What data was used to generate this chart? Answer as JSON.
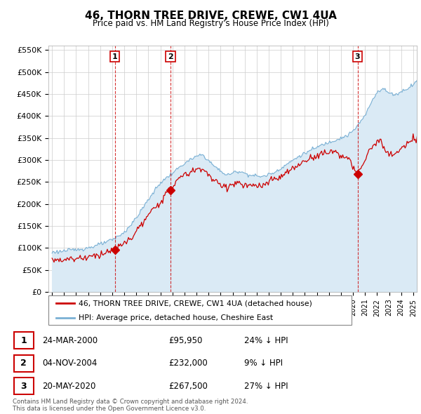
{
  "title": "46, THORN TREE DRIVE, CREWE, CW1 4UA",
  "subtitle": "Price paid vs. HM Land Registry's House Price Index (HPI)",
  "ylim": [
    0,
    560000
  ],
  "yticks": [
    0,
    50000,
    100000,
    150000,
    200000,
    250000,
    300000,
    350000,
    400000,
    450000,
    500000,
    550000
  ],
  "xlim_start": 1994.7,
  "xlim_end": 2025.3,
  "sale_color": "#cc0000",
  "hpi_color": "#7ab0d4",
  "hpi_fill_color": "#daeaf5",
  "legend_sale_label": "46, THORN TREE DRIVE, CREWE, CW1 4UA (detached house)",
  "legend_hpi_label": "HPI: Average price, detached house, Cheshire East",
  "sales": [
    {
      "date_num": 2000.22,
      "price": 95950,
      "label": "1"
    },
    {
      "date_num": 2004.84,
      "price": 232000,
      "label": "2"
    },
    {
      "date_num": 2020.38,
      "price": 267500,
      "label": "3"
    }
  ],
  "table_rows": [
    {
      "num": "1",
      "date": "24-MAR-2000",
      "price": "£95,950",
      "hpi_diff": "24% ↓ HPI"
    },
    {
      "num": "2",
      "date": "04-NOV-2004",
      "price": "£232,000",
      "hpi_diff": "9% ↓ HPI"
    },
    {
      "num": "3",
      "date": "20-MAY-2020",
      "price": "£267,500",
      "hpi_diff": "27% ↓ HPI"
    }
  ],
  "footer": "Contains HM Land Registry data © Crown copyright and database right 2024.\nThis data is licensed under the Open Government Licence v3.0.",
  "background_color": "#ffffff",
  "plot_bg_color": "#ffffff",
  "grid_color": "#cccccc"
}
